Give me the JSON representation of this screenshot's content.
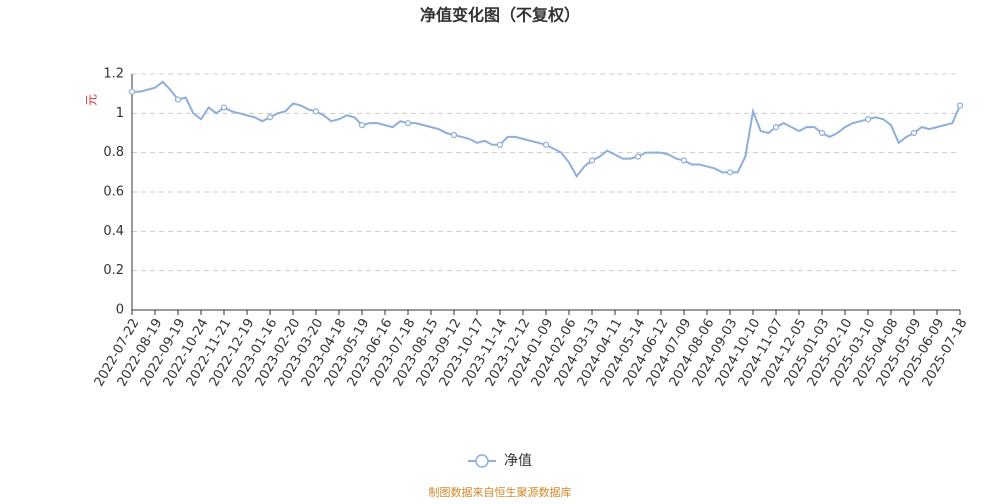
{
  "chart_data": {
    "type": "line",
    "title": "净值变化图（不复权）",
    "y_label": "元",
    "source": "制图数据来自恒生聚源数据库",
    "categories": [
      "2022-07-22",
      null,
      null,
      "2022-08-19",
      null,
      null,
      "2022-09-19",
      null,
      null,
      "2022-10-24",
      null,
      null,
      "2022-11-21",
      null,
      null,
      "2022-12-19",
      null,
      null,
      "2023-01-16",
      null,
      null,
      "2023-02-20",
      null,
      null,
      "2023-03-20",
      null,
      null,
      "2023-04-18",
      null,
      null,
      "2023-05-19",
      null,
      null,
      "2023-06-16",
      null,
      null,
      "2023-07-18",
      null,
      null,
      "2023-08-15",
      null,
      null,
      "2023-09-12",
      null,
      null,
      "2023-10-17",
      null,
      null,
      "2023-11-14",
      null,
      null,
      "2023-12-12",
      null,
      null,
      "2024-01-09",
      null,
      null,
      "2024-02-06",
      null,
      null,
      "2024-03-13",
      null,
      null,
      "2024-04-11",
      null,
      null,
      "2024-05-14",
      null,
      null,
      "2024-06-12",
      null,
      null,
      "2024-07-09",
      null,
      null,
      "2024-08-06",
      null,
      null,
      "2024-09-03",
      null,
      null,
      "2024-10-10",
      null,
      null,
      "2024-11-07",
      null,
      null,
      "2024-12-05",
      null,
      null,
      "2025-01-03",
      null,
      null,
      "2025-02-10",
      null,
      null,
      "2025-03-10",
      null,
      null,
      "2025-04-08",
      null,
      null,
      "2025-05-09",
      null,
      null,
      "2025-06-09",
      null,
      null,
      "2025-07-18"
    ],
    "series": [
      {
        "name": "净值",
        "color": "#8eaedb",
        "values": [
          1.11,
          1.11,
          1.12,
          1.13,
          1.16,
          1.12,
          1.07,
          1.08,
          1.0,
          0.97,
          1.03,
          1.0,
          1.03,
          1.01,
          1.0,
          0.99,
          0.98,
          0.96,
          0.98,
          1.0,
          1.01,
          1.05,
          1.04,
          1.02,
          1.01,
          0.99,
          0.96,
          0.97,
          0.99,
          0.98,
          0.94,
          0.95,
          0.95,
          0.94,
          0.93,
          0.96,
          0.95,
          0.95,
          0.94,
          0.93,
          0.92,
          0.9,
          0.89,
          0.88,
          0.87,
          0.85,
          0.86,
          0.84,
          0.84,
          0.88,
          0.88,
          0.87,
          0.86,
          0.85,
          0.84,
          0.82,
          0.8,
          0.75,
          0.68,
          0.73,
          0.76,
          0.78,
          0.81,
          0.79,
          0.77,
          0.77,
          0.78,
          0.8,
          0.8,
          0.8,
          0.79,
          0.77,
          0.76,
          0.74,
          0.74,
          0.73,
          0.72,
          0.7,
          0.7,
          0.7,
          0.78,
          1.01,
          0.91,
          0.9,
          0.93,
          0.95,
          0.93,
          0.91,
          0.93,
          0.93,
          0.9,
          0.88,
          0.9,
          0.93,
          0.95,
          0.96,
          0.97,
          0.98,
          0.97,
          0.94,
          0.85,
          0.88,
          0.9,
          0.93,
          0.92,
          0.93,
          0.94,
          0.95,
          1.04
        ]
      }
    ],
    "ylim": [
      0,
      1.2
    ],
    "yticks": [
      0,
      0.2,
      0.4,
      0.6,
      0.8,
      1,
      1.2
    ],
    "grid": true,
    "legend": "bottom"
  }
}
